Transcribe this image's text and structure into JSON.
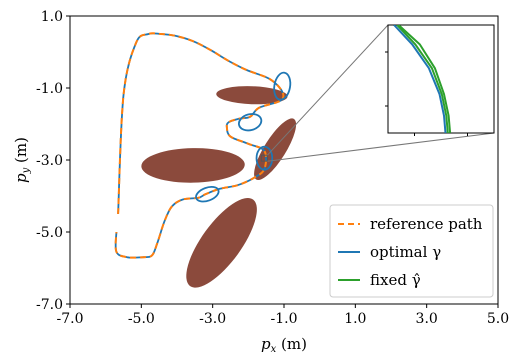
{
  "chart_data": {
    "type": "line",
    "xlabel": "p_x (m)",
    "ylabel": "p_y (m)",
    "xlim": [
      -7.0,
      5.0
    ],
    "ylim": [
      -7.0,
      1.0
    ],
    "xticks": [
      "-7.0",
      "-5.0",
      "-3.0",
      "-1.0",
      "1.0",
      "3.0",
      "5.0"
    ],
    "yticks": [
      "-7.0",
      "-5.0",
      "-3.0",
      "-1.0",
      "1.0"
    ],
    "grid": false,
    "legend_position": "bottom-right",
    "obstacles": [
      {
        "center": [
          -1.9,
          -1.2
        ],
        "semi_axes": [
          1.0,
          0.25
        ],
        "angle_deg": 2
      },
      {
        "center": [
          -1.25,
          -2.7
        ],
        "semi_axes": [
          1.0,
          0.3
        ],
        "angle_deg": -58
      },
      {
        "center": [
          -3.55,
          -3.15
        ],
        "semi_axes": [
          1.45,
          0.48
        ],
        "angle_deg": -1
      },
      {
        "center": [
          -2.75,
          -5.3
        ],
        "semi_axes": [
          1.5,
          0.55
        ],
        "angle_deg": -54
      }
    ],
    "obstacle_color": "#8b4a3c",
    "series": [
      {
        "name": "reference path",
        "color": "#ff7f0e",
        "style": "dashed",
        "x": [
          -5.65,
          -5.5,
          -5.15,
          -4.8,
          -4.45,
          -4.05,
          -3.55,
          -3.05,
          -2.55,
          -2.05,
          -1.4,
          -1.05,
          -1.1,
          -1.7,
          -1.95,
          -2.25,
          -2.55,
          -2.6,
          -2.5,
          -2.0,
          -1.55,
          -1.55,
          -1.85,
          -2.3,
          -2.8,
          -3.2,
          -3.4,
          -3.85,
          -4.15,
          -4.35,
          -4.55,
          -4.7,
          -4.95,
          -5.4,
          -5.7,
          -5.7
        ],
        "y": [
          -4.5,
          -1.2,
          0.25,
          0.5,
          0.5,
          0.45,
          0.3,
          0.05,
          -0.25,
          -0.5,
          -0.75,
          -1.1,
          -1.35,
          -1.55,
          -1.8,
          -1.85,
          -1.95,
          -2.1,
          -2.35,
          -2.55,
          -2.75,
          -3.25,
          -3.5,
          -3.7,
          -3.8,
          -3.95,
          -4.05,
          -4.1,
          -4.3,
          -4.7,
          -5.3,
          -5.65,
          -5.7,
          -5.7,
          -5.55,
          -5.0
        ]
      },
      {
        "name": "optimal γ",
        "color": "#1f77b4",
        "style": "solid",
        "x": [
          -5.65,
          -5.5,
          -5.15,
          -4.8,
          -4.45,
          -4.05,
          -3.55,
          -3.05,
          -2.55,
          -2.05,
          -1.4,
          -1.05,
          -1.1,
          -1.7,
          -1.95,
          -2.25,
          -2.55,
          -2.6,
          -2.5,
          -2.0,
          -1.55,
          -1.55,
          -1.85,
          -2.3,
          -2.8,
          -3.2,
          -3.4,
          -3.85,
          -4.15,
          -4.35,
          -4.55,
          -4.7,
          -4.95,
          -5.4,
          -5.7,
          -5.7
        ],
        "y": [
          -4.5,
          -1.2,
          0.25,
          0.5,
          0.5,
          0.45,
          0.3,
          0.05,
          -0.25,
          -0.5,
          -0.75,
          -1.1,
          -1.35,
          -1.55,
          -1.8,
          -1.85,
          -1.95,
          -2.1,
          -2.35,
          -2.55,
          -2.75,
          -3.25,
          -3.5,
          -3.7,
          -3.8,
          -3.95,
          -4.05,
          -4.1,
          -4.3,
          -4.7,
          -5.3,
          -5.65,
          -5.7,
          -5.7,
          -5.55,
          -5.0
        ]
      },
      {
        "name": "fixed γ̂",
        "color": "#2ca02c",
        "style": "solid",
        "x": [],
        "y": []
      }
    ],
    "loops": [
      {
        "center": [
          -1.05,
          -0.95
        ],
        "semi_axes": [
          0.22,
          0.38
        ],
        "angle_deg": 10
      },
      {
        "center": [
          -1.95,
          -1.95
        ],
        "semi_axes": [
          0.32,
          0.22
        ],
        "angle_deg": -15
      },
      {
        "center": [
          -1.55,
          -2.95
        ],
        "semi_axes": [
          0.22,
          0.32
        ],
        "angle_deg": 0
      },
      {
        "center": [
          -3.15,
          -3.95
        ],
        "semi_axes": [
          0.33,
          0.18
        ],
        "angle_deg": -20
      }
    ],
    "inset": {
      "zoom_point": [
        -1.55,
        -2.95
      ],
      "bounds": {
        "x": [
          -1.9,
          -1.2
        ],
        "y": [
          -3.2,
          -2.7
        ]
      },
      "curves": [
        {
          "series": "optimal γ",
          "color": "#1f77b4",
          "x": [
            -1.86,
            -1.74,
            -1.63,
            -1.56,
            -1.53,
            -1.52
          ],
          "y": [
            -2.7,
            -2.79,
            -2.9,
            -3.02,
            -3.12,
            -3.2
          ]
        },
        {
          "series": "fixed γ̂",
          "color": "#2ca02c",
          "x": [
            -1.83,
            -1.69,
            -1.59,
            -1.53,
            -1.5,
            -1.49
          ],
          "y": [
            -2.7,
            -2.79,
            -2.9,
            -3.02,
            -3.12,
            -3.2
          ]
        },
        {
          "series": "fixed γ̂",
          "color": "#2ca02c",
          "x": [
            -1.84,
            -1.72,
            -1.61,
            -1.545,
            -1.515,
            -1.505
          ],
          "y": [
            -2.7,
            -2.79,
            -2.9,
            -3.02,
            -3.12,
            -3.2
          ]
        }
      ]
    }
  }
}
